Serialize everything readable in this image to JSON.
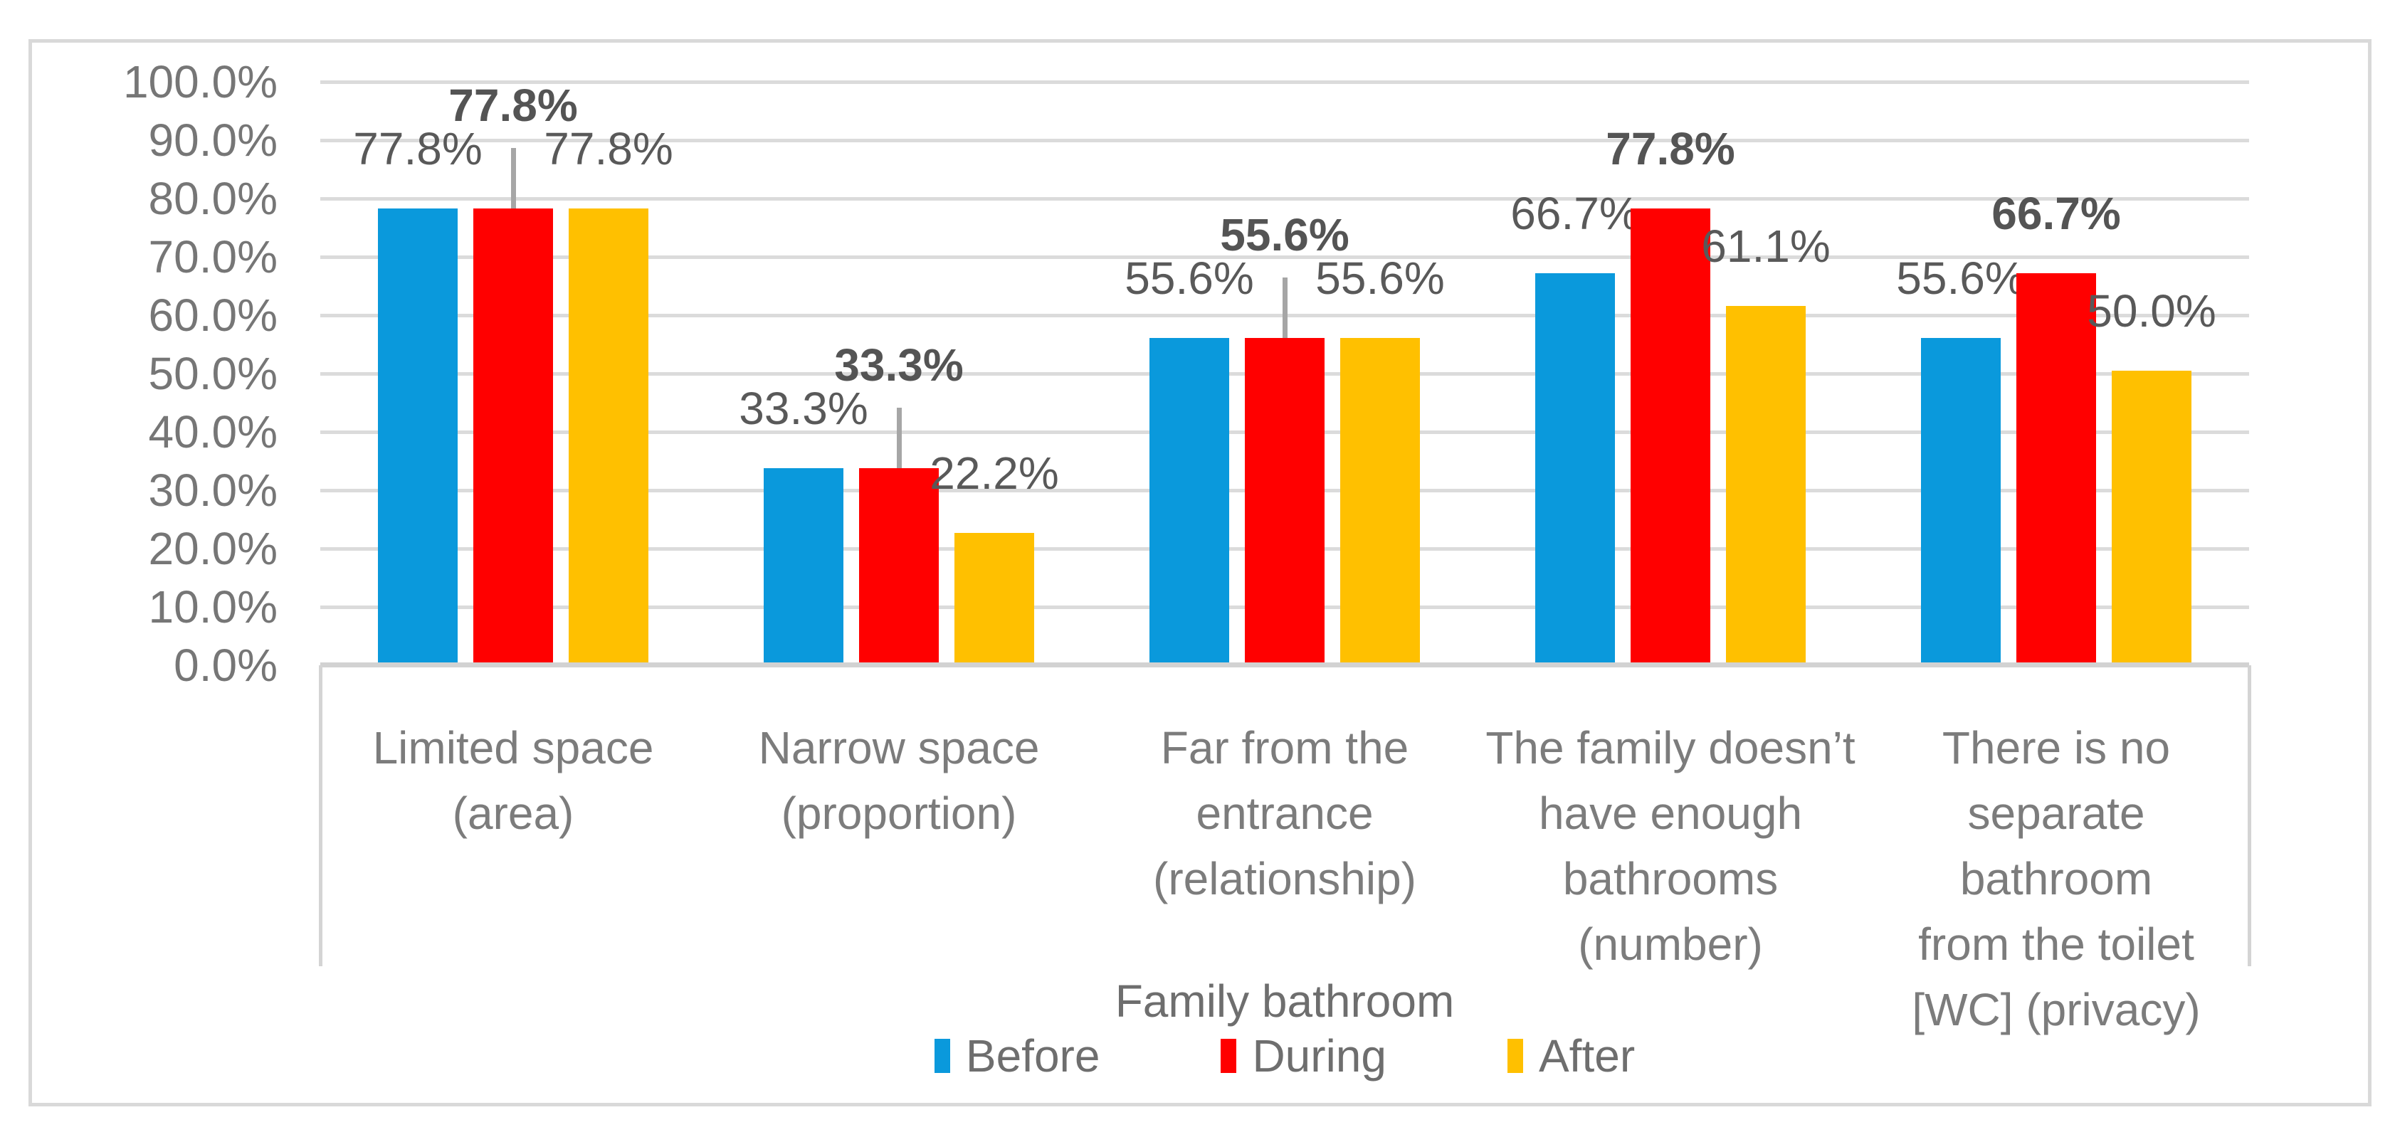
{
  "chart": {
    "xlabel": "Family bathroom",
    "chart_data": {
      "type": "bar",
      "title": "",
      "xlabel": "Family bathroom",
      "ylabel": "",
      "ylim": [
        0,
        100
      ],
      "grid": "horizontal",
      "legend_position": "bottom",
      "categories": [
        "Limited space\n(area)",
        "Narrow space\n(proportion)",
        "Far from the\nentrance\n(relationship)",
        "The family doesn’t\nhave enough\nbathrooms\n(number)",
        "There is no\nseparate bathroom\nfrom the toilet\n[WC] (privacy)"
      ],
      "series": [
        {
          "name": "Before",
          "color": "#0A99DC",
          "values": [
            77.8,
            33.3,
            55.6,
            66.7,
            55.6
          ],
          "labels": [
            "77.8%",
            "33.3%",
            "55.6%",
            "66.7%",
            "55.6%"
          ],
          "bold_labels": false
        },
        {
          "name": "During",
          "color": "#FF0000",
          "values": [
            77.8,
            33.3,
            55.6,
            77.8,
            66.7
          ],
          "labels": [
            "77.8%",
            "33.3%",
            "55.6%",
            "77.8%",
            "66.7%"
          ],
          "bold_labels": true
        },
        {
          "name": "After",
          "color": "#FFC000",
          "values": [
            77.8,
            22.2,
            55.6,
            61.1,
            50.0
          ],
          "labels": [
            "77.8%",
            "22.2%",
            "55.6%",
            "61.1%",
            "50.0%"
          ],
          "bold_labels": false
        }
      ],
      "during_label_elevated_with_leader_line": [
        true,
        true,
        true,
        false,
        false
      ],
      "y_axis": {
        "min": 0,
        "max": 100,
        "step": 10,
        "tick_labels": [
          "0.0%",
          "10.0%",
          "20.0%",
          "30.0%",
          "40.0%",
          "50.0%",
          "60.0%",
          "70.0%",
          "80.0%",
          "90.0%",
          "100.0%"
        ]
      },
      "legend": [
        {
          "label": "Before",
          "color": "#0A99DC"
        },
        {
          "label": "During",
          "color": "#FF0000"
        },
        {
          "label": "After",
          "color": "#FFC000"
        }
      ]
    },
    "colors": {
      "before_bar": "#0A99DC",
      "during_bar": "#FF0000",
      "after_bar": "#FFC000",
      "gridline": "#DBDBDB",
      "data_label_text": "#595959",
      "axis_text": "#767676",
      "leader_line": "#A6A6A6",
      "frame_border": "#D9D9D9"
    }
  }
}
